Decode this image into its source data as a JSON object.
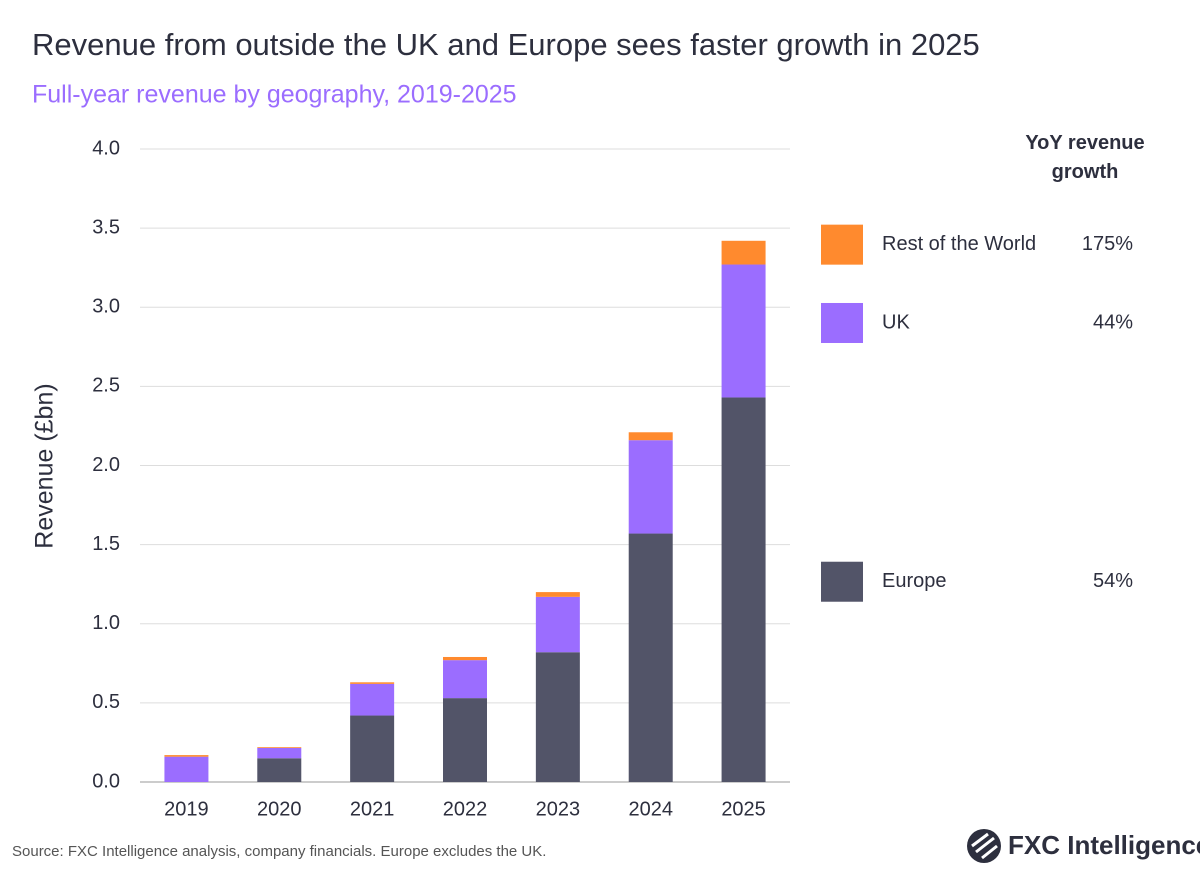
{
  "chart_data": {
    "type": "stacked-bar",
    "title": "Revenue from outside the UK and Europe sees faster growth in 2025",
    "subtitle": "Full-year revenue by geography, 2019-2025",
    "y_label": "Revenue (£bn)",
    "categories": [
      "2019",
      "2020",
      "2021",
      "2022",
      "2023",
      "2024",
      "2025"
    ],
    "series": [
      {
        "name": "Europe",
        "color": "#525468",
        "values": [
          0,
          0.15,
          0.42,
          0.53,
          0.82,
          1.57,
          2.43
        ],
        "yoy_growth": {
          "value": 54,
          "label": "54%"
        }
      },
      {
        "name": "UK",
        "color": "#9b6dff",
        "values": [
          0.16,
          0.065,
          0.2,
          0.24,
          0.35,
          0.59,
          0.84
        ],
        "yoy_growth": {
          "value": 44,
          "label": "44%"
        }
      },
      {
        "name": "Rest of the World",
        "color": "#ff8a2e",
        "values": [
          0.01,
          0.005,
          0.01,
          0.02,
          0.03,
          0.05,
          0.15
        ],
        "yoy_growth": {
          "value": 175,
          "label": "175%"
        }
      }
    ],
    "legend_title": "YoY revenue growth",
    "ylim": [
      0,
      4
    ],
    "yticks": [
      {
        "value": 0,
        "label": "0.0"
      },
      {
        "value": 0.5,
        "label": "0.5"
      },
      {
        "value": 1,
        "label": "1.0"
      },
      {
        "value": 1.5,
        "label": "1.5"
      },
      {
        "value": 2,
        "label": "2.0"
      },
      {
        "value": 2.5,
        "label": "2.5"
      },
      {
        "value": 3,
        "label": "3.0"
      },
      {
        "value": 3.5,
        "label": "3.5"
      },
      {
        "value": 4,
        "label": "4.0"
      }
    ],
    "grid": true,
    "source": "Source: FXC Intelligence analysis, company financials. Europe excludes the UK.",
    "logo": "FXC Intelligence"
  }
}
